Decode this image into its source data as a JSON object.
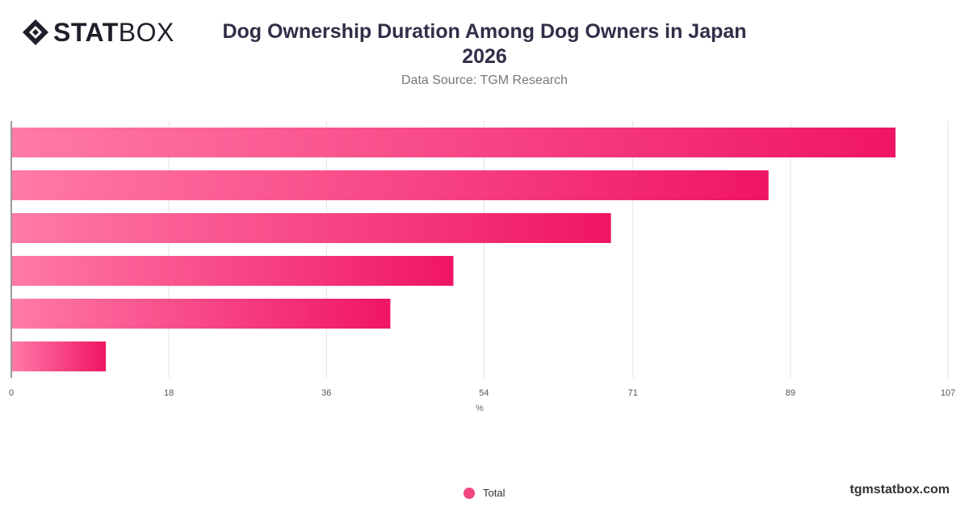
{
  "header": {
    "logo_text_bold": "STAT",
    "logo_text_regular": "BOX",
    "title": "Dog Ownership Duration Among Dog Owners in Japan 2026",
    "subtitle": "Data Source: TGM Research"
  },
  "chart_data": {
    "type": "bar",
    "orientation": "horizontal",
    "categories": [
      "",
      "",
      "",
      "",
      "",
      ""
    ],
    "series": [
      {
        "name": "Total",
        "values": [
          101,
          86.5,
          68.5,
          50.5,
          43.3,
          10.8
        ]
      }
    ],
    "xlabel": "%",
    "ylabel": "",
    "xlim": [
      0,
      107
    ],
    "xticks": [
      "0",
      "18",
      "36",
      "54",
      "71",
      "89",
      "107"
    ],
    "xtick_values": [
      0,
      18,
      36,
      54,
      71,
      89,
      107
    ],
    "grid": true,
    "legend": "bottom-center",
    "colors": {
      "bar_start": "#ff7aa8",
      "bar_end": "#f01565",
      "legend_dot": "#f0457f"
    }
  },
  "legend": {
    "items": [
      {
        "label": "Total"
      }
    ]
  },
  "footer": {
    "site": "tgmstatbox.com"
  }
}
